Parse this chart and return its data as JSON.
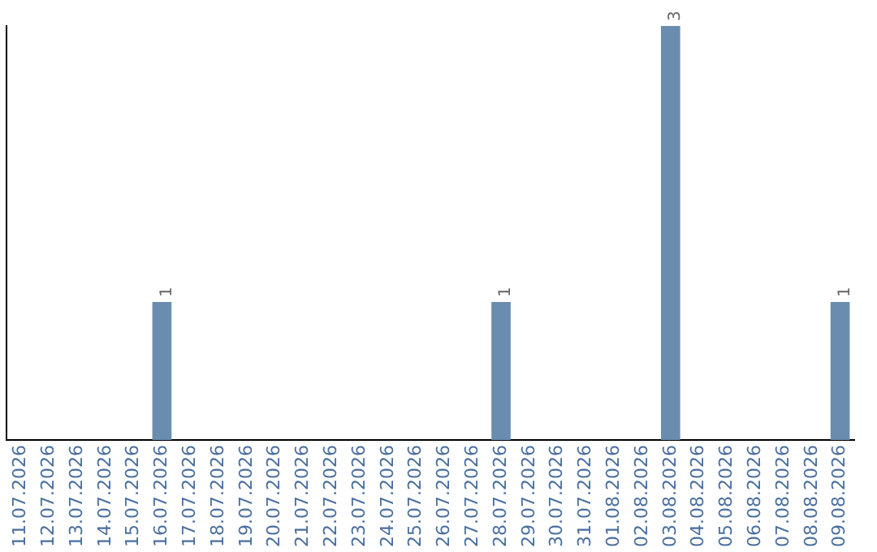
{
  "chart_data": {
    "type": "bar",
    "categories": [
      "11.07.2026",
      "12.07.2026",
      "13.07.2026",
      "14.07.2026",
      "15.07.2026",
      "16.07.2026",
      "17.07.2026",
      "18.07.2026",
      "19.07.2026",
      "20.07.2026",
      "21.07.2026",
      "22.07.2026",
      "23.07.2026",
      "24.07.2026",
      "25.07.2026",
      "26.07.2026",
      "27.07.2026",
      "28.07.2026",
      "29.07.2026",
      "30.07.2026",
      "31.07.2026",
      "01.08.2026",
      "02.08.2026",
      "03.08.2026",
      "04.08.2026",
      "05.08.2026",
      "06.08.2026",
      "07.08.2026",
      "08.08.2026",
      "09.08.2026"
    ],
    "values": [
      0,
      0,
      0,
      0,
      0,
      1,
      0,
      0,
      0,
      0,
      0,
      0,
      0,
      0,
      0,
      0,
      0,
      1,
      0,
      0,
      0,
      0,
      0,
      3,
      0,
      0,
      0,
      0,
      0,
      1
    ],
    "value_labels": [
      null,
      null,
      null,
      null,
      null,
      "1",
      null,
      null,
      null,
      null,
      null,
      null,
      null,
      null,
      null,
      null,
      null,
      "1",
      null,
      null,
      null,
      null,
      null,
      "3",
      null,
      null,
      null,
      null,
      null,
      "1"
    ],
    "color": "#6a8caf",
    "ylim": [
      0,
      3
    ],
    "tick_labels": "x",
    "grid": false,
    "legend": false
  }
}
